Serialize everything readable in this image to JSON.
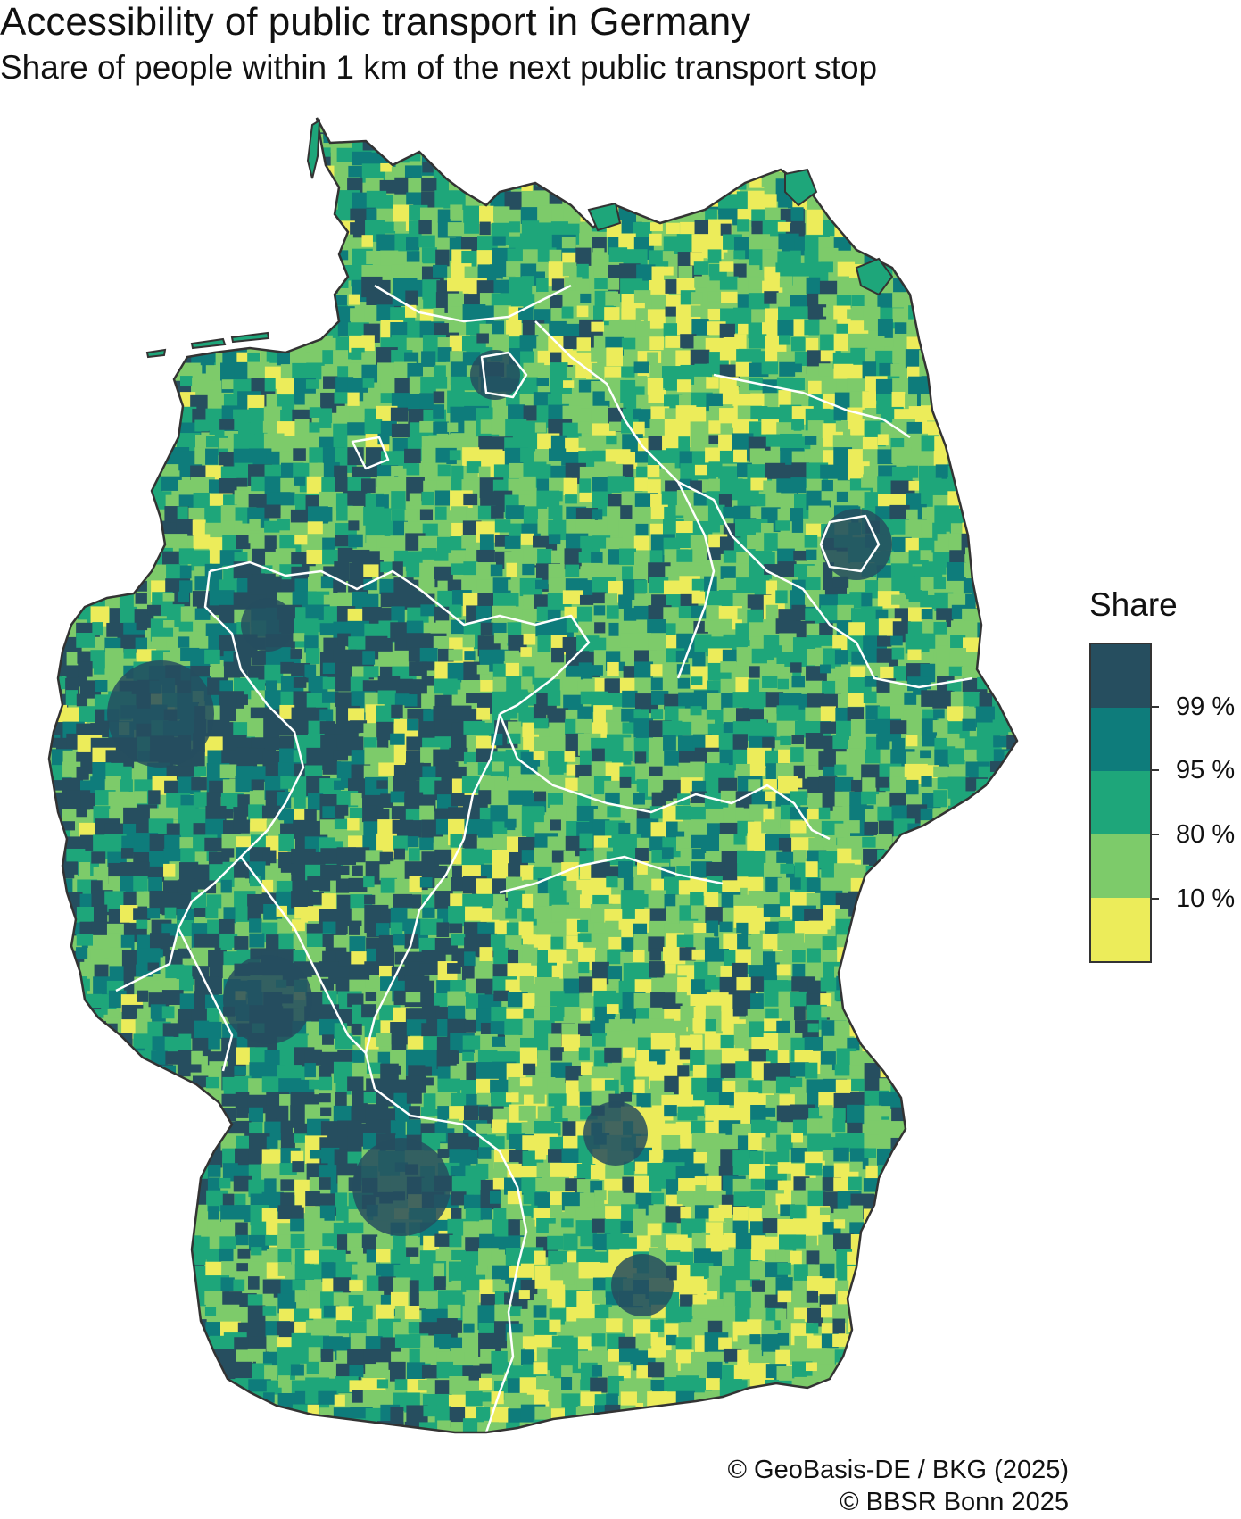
{
  "title": "Accessibility of public transport in Germany",
  "subtitle": "Share of people within 1 km of the next public transport stop",
  "legend": {
    "title": "Share",
    "classes": [
      {
        "color": "#264e5f"
      },
      {
        "color": "#0e7c7b"
      },
      {
        "color": "#1ea67a"
      },
      {
        "color": "#7dcb6a"
      },
      {
        "color": "#ecec5a"
      }
    ],
    "breaks": [
      "99 %",
      "95 %",
      "80 %",
      "10 %"
    ]
  },
  "credits": [
    "© GeoBasis-DE / BKG (2025)",
    "© BBSR Bonn 2025"
  ]
}
